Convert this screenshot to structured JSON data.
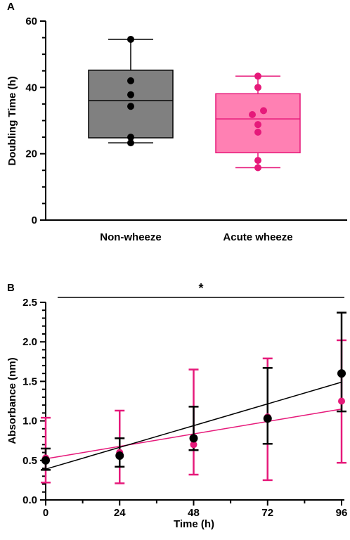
{
  "chart_data": [
    {
      "panel": "A",
      "type": "box",
      "ylabel": "Doubling Time (h)",
      "ylim": [
        0,
        60
      ],
      "yticks": [
        0,
        20,
        40,
        60
      ],
      "categories": [
        "Non-wheeze",
        "Acute wheeze"
      ],
      "series": [
        {
          "category": "Non-wheeze",
          "color": "#808080",
          "point_color": "#000000",
          "min": 23.3,
          "q1": 24.8,
          "median": 36,
          "q3": 45.2,
          "max": 54.5,
          "points": [
            54.5,
            42.0,
            37.8,
            34.3,
            25.0,
            23.3
          ]
        },
        {
          "category": "Acute wheeze",
          "color": "#ff80b3",
          "point_color": "#e6197a",
          "min": 15.8,
          "q1": 20.3,
          "median": 30.5,
          "q3": 38.1,
          "max": 43.4,
          "points": [
            43.4,
            40.0,
            33.0,
            31.8,
            28.8,
            26.5,
            18.0,
            15.8
          ]
        }
      ]
    },
    {
      "panel": "B",
      "type": "scatter",
      "xlabel": "Time (h)",
      "ylabel": "Absorbance (nm)",
      "xlim": [
        0,
        96
      ],
      "ylim": [
        0,
        2.5
      ],
      "xticks": [
        0,
        24,
        48,
        72,
        96
      ],
      "yticks": [
        "0.0",
        "0.5",
        "1.0",
        "1.5",
        "2.0",
        "2.5"
      ],
      "annotation": "*",
      "series": [
        {
          "color": "#e6197a",
          "x": [
            0,
            24,
            48,
            72,
            96
          ],
          "y": [
            0.53,
            0.6,
            0.7,
            1.05,
            1.25
          ],
          "err_low": [
            0.22,
            0.21,
            0.32,
            0.25,
            0.47
          ],
          "err_high": [
            1.04,
            1.13,
            1.65,
            1.79,
            2.02
          ],
          "fit": [
            0.52,
            1.15
          ]
        },
        {
          "color": "#000000",
          "x": [
            0,
            24,
            48,
            72,
            96
          ],
          "y": [
            0.5,
            0.56,
            0.78,
            1.03,
            1.6
          ],
          "err_low": [
            0.38,
            0.42,
            0.63,
            0.71,
            1.12
          ],
          "err_high": [
            0.65,
            0.78,
            1.18,
            1.67,
            2.37
          ],
          "fit": [
            0.39,
            1.49
          ]
        }
      ]
    }
  ]
}
